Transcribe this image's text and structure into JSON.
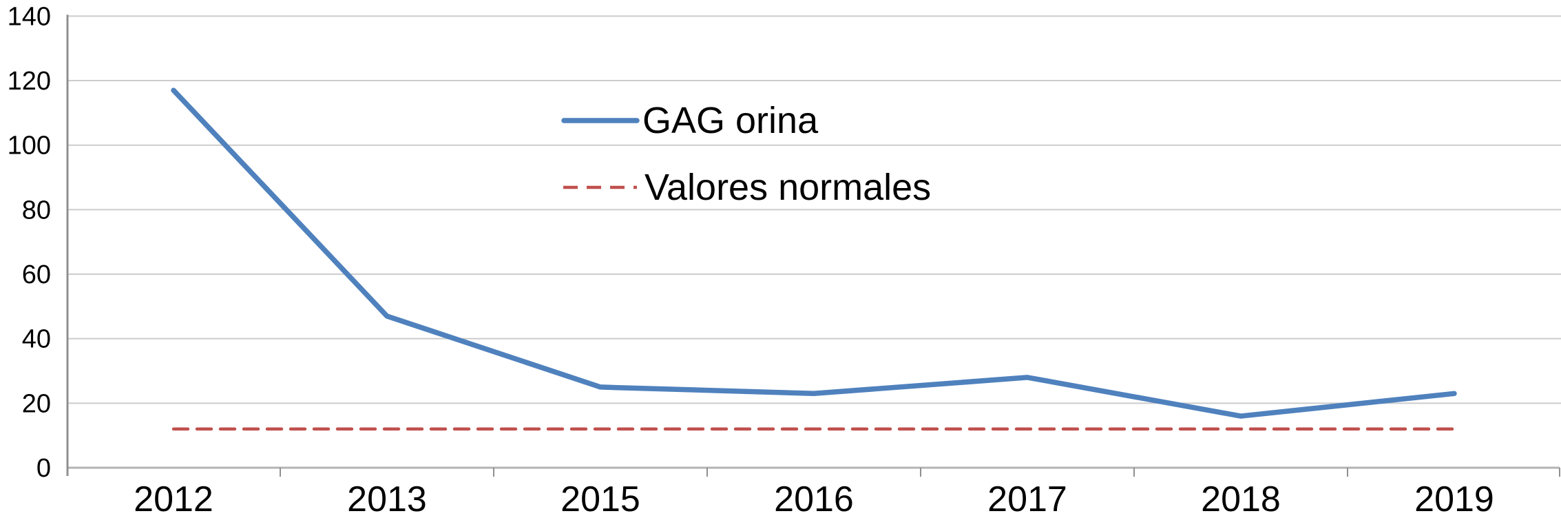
{
  "chart_data": {
    "type": "line",
    "title": "",
    "xlabel": "",
    "ylabel": "",
    "categories": [
      "2012",
      "2013",
      "2015",
      "2016",
      "2017",
      "2018",
      "2019"
    ],
    "series": [
      {
        "name": "GAG orina",
        "values": [
          117,
          47,
          25,
          23,
          28,
          16,
          23
        ],
        "color": "#4f81bd",
        "line_style": "solid"
      },
      {
        "name": "Valores normales",
        "values": [
          12,
          12,
          12,
          12,
          12,
          12,
          12
        ],
        "color": "#c0504d",
        "line_style": "dashed"
      }
    ],
    "ylim": [
      0,
      140
    ],
    "y_ticks": [
      0,
      20,
      40,
      60,
      80,
      100,
      120,
      140
    ],
    "grid": true,
    "legend_position": "inside upper center",
    "colors": {
      "gridline": "#cccccc",
      "axis": "#8f8f8f",
      "bottom_axis": "#b3b3b3",
      "text": "#000000",
      "background": "#ffffff"
    }
  }
}
